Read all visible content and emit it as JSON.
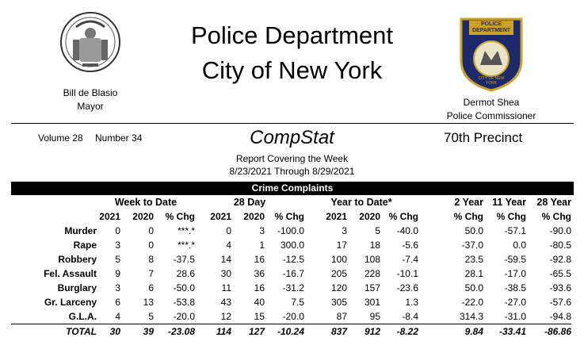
{
  "header": {
    "title_line1": "Police Department",
    "title_line2": "City of New York",
    "mayor_name": "Bill de Blasio",
    "mayor_title": "Mayor",
    "commissioner_name": "Dermot Shea",
    "commissioner_title": "Police Commissioner",
    "seal_icon": "nyc-seal-icon",
    "badge_icon": "nypd-patch-icon",
    "badge_text": "POLICE DEPARTMENT",
    "badge_city": "CITY OF NEW YORK"
  },
  "report": {
    "volume": "Volume 28",
    "number": "Number  34",
    "name": "CompStat",
    "precinct": "70th Precinct",
    "covering": "Report Covering the Week",
    "dates": "8/23/2021  Through  8/29/2021"
  },
  "table": {
    "section": "Crime Complaints",
    "groups": {
      "week": "Week to Date",
      "day28": "28 Day",
      "ytd": "Year to Date*",
      "y2": "2 Year",
      "y11": "11 Year",
      "y28": "28 Year"
    },
    "columns": [
      "2021",
      "2020",
      "% Chg",
      "2021",
      "2020",
      "% Chg",
      "2021",
      "2020",
      "% Chg",
      "% Chg",
      "% Chg",
      "% Chg"
    ],
    "rows": [
      {
        "label": "Murder",
        "values": [
          "0",
          "0",
          "***.*",
          "0",
          "3",
          "-100.0",
          "3",
          "5",
          "-40.0",
          "50.0",
          "-57.1",
          "-90.0"
        ]
      },
      {
        "label": "Rape",
        "values": [
          "3",
          "0",
          "***.*",
          "4",
          "1",
          "300.0",
          "17",
          "18",
          "-5.6",
          "-37.0",
          "0.0",
          "-80.5"
        ]
      },
      {
        "label": "Robbery",
        "values": [
          "5",
          "8",
          "-37.5",
          "14",
          "16",
          "-12.5",
          "100",
          "108",
          "-7.4",
          "23.5",
          "-59.5",
          "-92.8"
        ]
      },
      {
        "label": "Fel. Assault",
        "values": [
          "9",
          "7",
          "28.6",
          "30",
          "36",
          "-16.7",
          "205",
          "228",
          "-10.1",
          "28.1",
          "-17.0",
          "-65.5"
        ]
      },
      {
        "label": "Burglary",
        "values": [
          "3",
          "6",
          "-50.0",
          "11",
          "16",
          "-31.2",
          "120",
          "157",
          "-23.6",
          "50.0",
          "-38.5",
          "-93.6"
        ]
      },
      {
        "label": "Gr. Larceny",
        "values": [
          "6",
          "13",
          "-53.8",
          "43",
          "40",
          "7.5",
          "305",
          "301",
          "1.3",
          "-22.0",
          "-27.0",
          "-57.6"
        ]
      },
      {
        "label": "G.L.A.",
        "values": [
          "4",
          "5",
          "-20.0",
          "12",
          "15",
          "-20.0",
          "87",
          "95",
          "-8.4",
          "314.3",
          "-31.0",
          "-94.8"
        ]
      }
    ],
    "total": {
      "label": "TOTAL",
      "values": [
        "30",
        "39",
        "-23.08",
        "114",
        "127",
        "-10.24",
        "837",
        "912",
        "-8.22",
        "9.84",
        "-33.41",
        "-86.86"
      ]
    }
  }
}
